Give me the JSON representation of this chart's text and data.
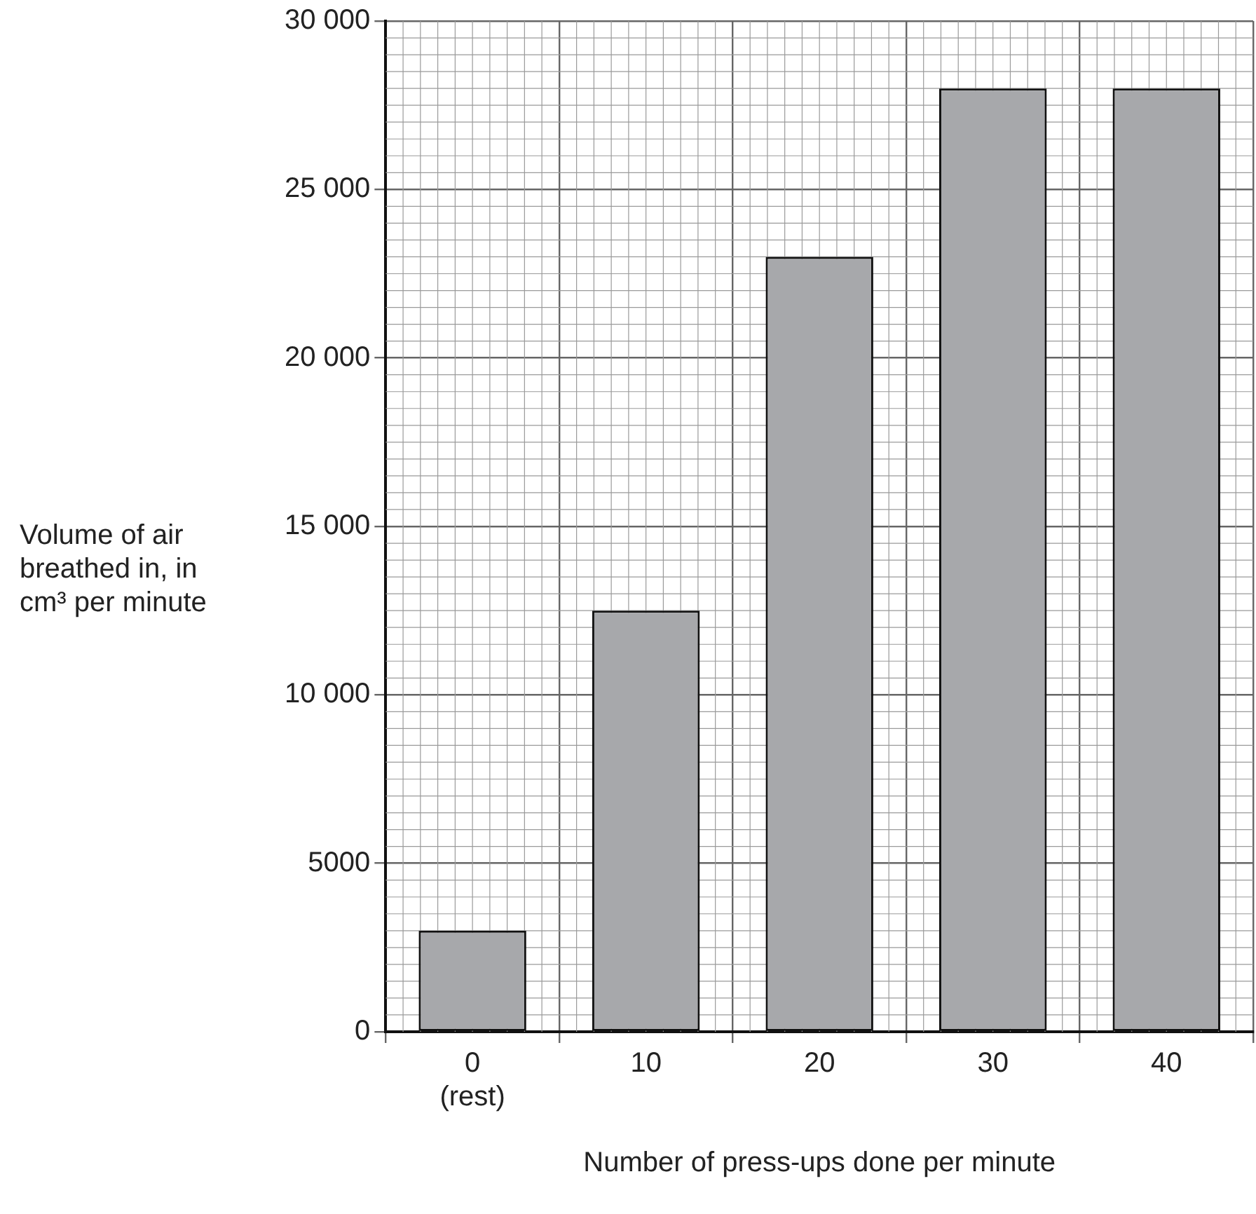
{
  "chart_data": {
    "type": "bar",
    "xlabel": "Number of press-ups done per minute",
    "ylabel": "Volume of air breathed in, in cm³ per minute",
    "categories": [
      "0\n(rest)",
      "10",
      "20",
      "30",
      "40"
    ],
    "values": [
      3000,
      12500,
      23000,
      28000,
      28000
    ],
    "color": "#a7a8ab",
    "ylim": [
      0,
      30000
    ],
    "yticks": [
      0,
      5000,
      {
        "value": 10000,
        "label": "10 000"
      },
      {
        "value": 15000,
        "label": "15 000"
      },
      {
        "value": 20000,
        "label": "20 000"
      },
      {
        "value": 25000,
        "label": "25 000"
      },
      {
        "value": 30000,
        "label": "30 000"
      }
    ],
    "grid": true,
    "legend": false
  }
}
